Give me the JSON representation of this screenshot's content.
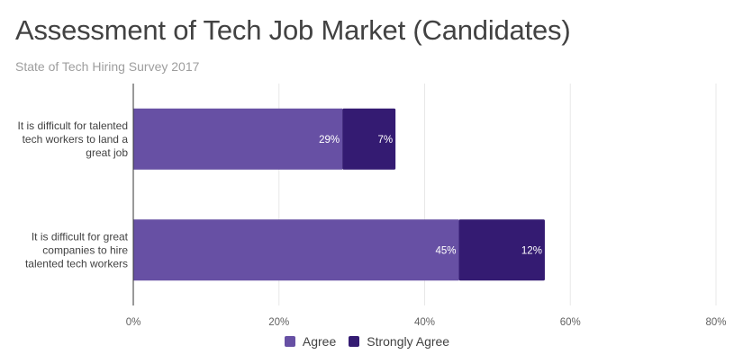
{
  "chart_data": {
    "type": "bar",
    "orientation": "horizontal",
    "stacked": true,
    "title": "Assessment of Tech Job Market (Candidates)",
    "subtitle": "State of Tech Hiring Survey 2017",
    "categories": [
      [
        "It is difficult for talented",
        "tech workers to land a",
        "great job"
      ],
      [
        "It is difficult for great",
        "companies to hire",
        "talented tech workers"
      ]
    ],
    "series": [
      {
        "name": "Agree",
        "color": "#6750a4",
        "values": [
          28.7,
          44.7
        ],
        "labels": [
          "29%",
          "45%"
        ]
      },
      {
        "name": "Strongly Agree",
        "color": "#341b72",
        "values": [
          7.3,
          11.8
        ],
        "labels": [
          "7%",
          "12%"
        ]
      }
    ],
    "xlim": [
      0,
      80
    ],
    "xticks": [
      0,
      20,
      40,
      60,
      80
    ],
    "xtick_labels": [
      "0%",
      "20%",
      "40%",
      "60%",
      "80%"
    ],
    "xlabel": "",
    "ylabel": "",
    "grid": true,
    "legend": "bottom-center"
  }
}
